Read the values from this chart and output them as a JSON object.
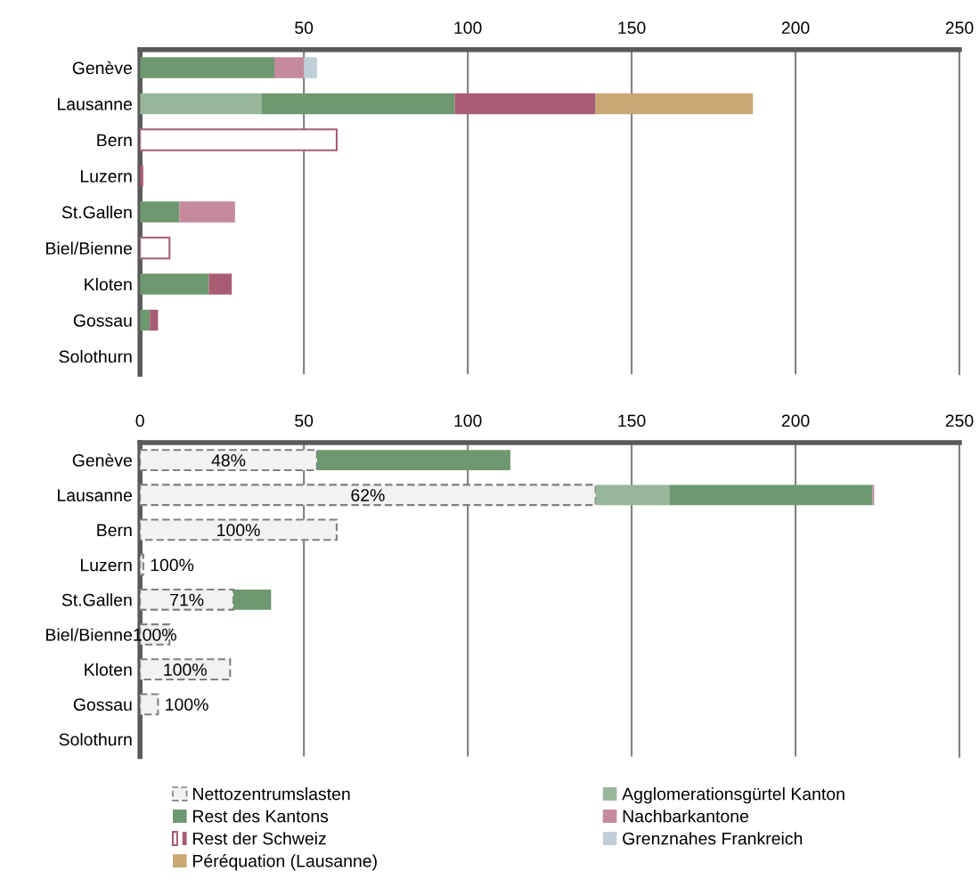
{
  "chart_data": [
    {
      "type": "bar",
      "orientation": "horizontal",
      "stacked": true,
      "categories": [
        "Genève",
        "Lausanne",
        "Bern",
        "Luzern",
        "St.Gallen",
        "Biel/Bienne",
        "Kloten",
        "Gossau",
        "Solothurn"
      ],
      "xlim": [
        0,
        250
      ],
      "xticks": [
        {
          "value": 0,
          "label": null
        },
        50,
        100,
        150,
        200,
        250
      ],
      "grid": "x",
      "legend": "bottom",
      "series": [
        {
          "name": "Agglomerationsgürtel Kanton",
          "color": "#98b699",
          "values": [
            0,
            37,
            0,
            0,
            0,
            0,
            0,
            0,
            0
          ]
        },
        {
          "name": "Rest des Kantons",
          "color": "#6e9870",
          "values": [
            41,
            59,
            0,
            0,
            12,
            0,
            21,
            3,
            0
          ]
        },
        {
          "name": "Nachbarkantone",
          "color": "#c48a9b",
          "values": [
            9,
            0,
            0,
            0,
            17,
            0,
            0,
            0,
            0
          ]
        },
        {
          "name": "Rest der Schweiz",
          "color": "#a85c73",
          "colors": [
            "#a85c73",
            "#a85c73",
            "#ffffff",
            "#a85c73",
            "#a85c73",
            "#ffffff",
            "#a85c73",
            "#a85c73",
            "#a85c73"
          ],
          "values": [
            0,
            43,
            60,
            1,
            0,
            9,
            7,
            2.5,
            0
          ]
        },
        {
          "name": "Grenznahes Frankreich",
          "color": "#bfcfd8",
          "values": [
            4,
            0,
            0,
            0,
            0,
            0,
            0,
            0,
            0
          ]
        },
        {
          "name": "Péréquation (Lausanne)",
          "color": "#c8a873",
          "values": [
            0,
            48,
            0,
            0,
            0,
            0,
            0,
            0,
            0
          ]
        }
      ]
    },
    {
      "type": "bar",
      "orientation": "horizontal",
      "stacked": true,
      "categories": [
        "Genève",
        "Lausanne",
        "Bern",
        "Luzern",
        "St.Gallen",
        "Biel/Bienne",
        "Kloten",
        "Gossau",
        "Solothurn"
      ],
      "xlim": [
        0,
        250
      ],
      "xticks": [
        0,
        50,
        100,
        150,
        200,
        250
      ],
      "grid": "x",
      "legend": "bottom",
      "annotations": [
        "48%",
        "62%",
        "100%",
        "100%",
        "71%",
        "100%",
        "100%",
        "100%"
      ],
      "series": [
        {
          "name": "Nettozentrumslasten",
          "color": "#f2f2f2",
          "line_style": "dashed",
          "values": [
            54,
            139,
            60,
            1,
            28.5,
            9,
            27.5,
            5.5,
            0
          ]
        },
        {
          "name": "Agglomerationsgürtel Kanton",
          "color": "#98b699",
          "values": [
            0,
            22.5,
            0,
            0,
            0,
            0,
            0,
            0,
            0
          ]
        },
        {
          "name": "Rest des Kantons",
          "color": "#6e9870",
          "values": [
            59,
            62,
            0,
            0,
            11.5,
            0,
            0,
            0,
            0
          ]
        },
        {
          "name": "Nachbarkantone",
          "color": "#c48a9b",
          "values": [
            0,
            0.5,
            0,
            0,
            0,
            0,
            0,
            0,
            0
          ]
        }
      ]
    }
  ]
}
